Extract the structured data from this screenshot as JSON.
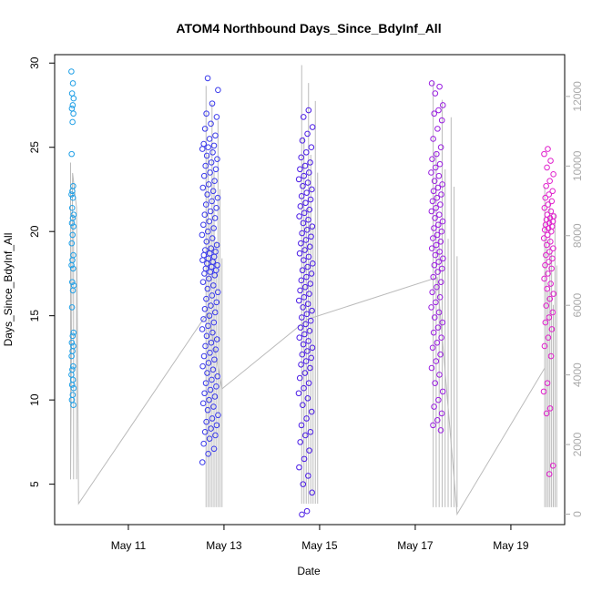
{
  "chart_data": {
    "type": "scatter",
    "title": "ATOM4 Northbound Days_Since_BdyInf_All",
    "xlabel": "Date",
    "ylabel": "Days_Since_BdyInf_All",
    "x_ticks": [
      "May 11",
      "May 13",
      "May 15",
      "May 17",
      "May 19"
    ],
    "x_tick_values": [
      "2024-05-11",
      "2024-05-13",
      "2024-05-15",
      "2024-05-17",
      "2024-05-19"
    ],
    "xlim": [
      "2024-05-09T11:00",
      "2024-05-20T03:00"
    ],
    "y_ticks": [
      5,
      10,
      15,
      20,
      25,
      30
    ],
    "ylim": [
      2.6,
      30.5
    ],
    "y2_ticks": [
      0,
      2000,
      4000,
      6000,
      8000,
      10000,
      12000
    ],
    "y2lim": [
      -300,
      13200
    ],
    "colors": {
      "axis": "#000000",
      "secondary_axis": "#aaaaaa",
      "cumulative_line": "#bbbbbb",
      "series": [
        "#1f9fe6",
        "#3a3aeb",
        "#4b1de6",
        "#9a1fe0",
        "#e01fcc"
      ]
    },
    "series": [
      {
        "x": "2024-05-09T20:00",
        "spread_hours": 1.2,
        "values": [
          29.5,
          28.8,
          28.2,
          27.9,
          27.5,
          27.3,
          27.0,
          26.5,
          24.6,
          22.7,
          22.4,
          22.2,
          22.0,
          21.4,
          21.0,
          20.8,
          20.5,
          20.3,
          19.8,
          19.3,
          18.6,
          18.3,
          18.0,
          17.8,
          17.0,
          16.8,
          16.5,
          15.5,
          14.0,
          13.8,
          13.4,
          13.2,
          12.9,
          12.6,
          12.0,
          11.8,
          11.5,
          11.2,
          10.9,
          10.7,
          10.3,
          10.0,
          9.7
        ]
      },
      {
        "x": "2024-05-12T17:00",
        "spread_hours": 8,
        "values": [
          29.1,
          28.4,
          27.6,
          27.0,
          26.8,
          26.4,
          26.1,
          25.7,
          25.5,
          25.2,
          25.1,
          25.0,
          24.9,
          24.7,
          24.5,
          24.3,
          24.1,
          23.9,
          23.7,
          23.5,
          23.3,
          23.0,
          22.8,
          22.6,
          22.4,
          22.2,
          22.0,
          21.8,
          21.6,
          21.4,
          21.2,
          21.0,
          20.8,
          20.6,
          20.4,
          20.2,
          20.0,
          19.8,
          19.6,
          19.4,
          19.2,
          19.0,
          18.9,
          18.8,
          18.7,
          18.6,
          18.5,
          18.4,
          18.3,
          18.2,
          18.1,
          18.0,
          17.9,
          17.8,
          17.7,
          17.6,
          17.5,
          17.4,
          17.2,
          17.0,
          16.8,
          16.6,
          16.4,
          16.2,
          16.0,
          15.8,
          15.6,
          15.4,
          15.2,
          15.0,
          14.8,
          14.6,
          14.4,
          14.2,
          14.0,
          13.8,
          13.6,
          13.4,
          13.2,
          13.0,
          12.8,
          12.6,
          12.4,
          12.2,
          12.0,
          11.8,
          11.6,
          11.4,
          11.2,
          11.0,
          10.8,
          10.6,
          10.4,
          10.2,
          10.0,
          9.8,
          9.6,
          9.4,
          9.1,
          8.9,
          8.7,
          8.5,
          8.3,
          8.1,
          7.9,
          7.7,
          7.4,
          7.1,
          6.8,
          6.3
        ]
      },
      {
        "x": "2024-05-14T17:00",
        "spread_hours": 7,
        "values": [
          27.2,
          26.8,
          26.2,
          25.8,
          25.4,
          25.0,
          24.7,
          24.4,
          24.1,
          23.9,
          23.7,
          23.5,
          23.3,
          23.1,
          22.9,
          22.7,
          22.5,
          22.3,
          22.1,
          21.9,
          21.7,
          21.5,
          21.3,
          21.1,
          20.9,
          20.7,
          20.5,
          20.3,
          20.1,
          19.9,
          19.7,
          19.5,
          19.3,
          19.1,
          18.9,
          18.7,
          18.5,
          18.3,
          18.1,
          17.9,
          17.7,
          17.5,
          17.3,
          17.1,
          16.9,
          16.7,
          16.5,
          16.3,
          16.1,
          15.9,
          15.7,
          15.5,
          15.3,
          15.1,
          14.9,
          14.7,
          14.5,
          14.3,
          14.1,
          13.9,
          13.7,
          13.5,
          13.3,
          13.1,
          12.9,
          12.7,
          12.5,
          12.3,
          12.1,
          11.9,
          11.6,
          11.3,
          11.0,
          10.7,
          10.4,
          10.1,
          9.7,
          9.3,
          8.9,
          8.5,
          8.1,
          7.9,
          7.5,
          7.0,
          6.5,
          6.0,
          5.5,
          5.0,
          4.5,
          3.4,
          3.2
        ]
      },
      {
        "x": "2024-05-17T11:00",
        "spread_hours": 6,
        "values": [
          28.8,
          28.6,
          28.2,
          27.5,
          27.2,
          27.0,
          26.6,
          26.1,
          25.5,
          25.0,
          24.6,
          24.3,
          24.0,
          23.8,
          23.5,
          23.3,
          23.0,
          22.8,
          22.6,
          22.4,
          22.2,
          22.0,
          21.8,
          21.6,
          21.4,
          21.2,
          21.0,
          20.8,
          20.6,
          20.4,
          20.2,
          20.0,
          19.8,
          19.6,
          19.4,
          19.2,
          19.0,
          18.8,
          18.6,
          18.4,
          18.2,
          18.0,
          17.8,
          17.6,
          17.3,
          17.0,
          16.7,
          16.4,
          16.1,
          15.8,
          15.5,
          15.2,
          14.9,
          14.6,
          14.3,
          14.0,
          13.7,
          13.4,
          13.1,
          12.7,
          12.3,
          11.9,
          11.5,
          11.0,
          10.5,
          10.0,
          9.6,
          9.2,
          8.8,
          8.5,
          8.2
        ]
      },
      {
        "x": "2024-05-19T19:00",
        "spread_hours": 5,
        "values": [
          24.9,
          24.6,
          24.2,
          23.8,
          23.4,
          23.0,
          22.7,
          22.4,
          22.2,
          22.0,
          21.8,
          21.6,
          21.4,
          21.2,
          21.0,
          20.9,
          20.8,
          20.7,
          20.6,
          20.5,
          20.4,
          20.3,
          20.2,
          20.1,
          20.0,
          19.8,
          19.6,
          19.4,
          19.2,
          19.0,
          18.8,
          18.6,
          18.4,
          18.2,
          18.0,
          17.8,
          17.5,
          17.2,
          16.9,
          16.6,
          16.3,
          16.0,
          15.6,
          15.2,
          14.9,
          14.6,
          14.2,
          13.7,
          13.2,
          12.6,
          11.0,
          10.5,
          9.5,
          9.2,
          6.1,
          5.6
        ]
      }
    ],
    "cumulative_line": {
      "axis": "y2",
      "points": [
        [
          "2024-05-09T19:00",
          1000
        ],
        [
          "2024-05-09T20:00",
          9800
        ],
        [
          "2024-05-09T22:00",
          8800
        ],
        [
          "2024-05-09T23:00",
          300
        ],
        [
          "2024-05-12T16:00",
          5800
        ],
        [
          "2024-05-12T23:00",
          3600
        ],
        [
          "2024-05-14T18:00",
          5600
        ],
        [
          "2024-05-17T11:00",
          6800
        ],
        [
          "2024-05-17T21:00",
          0
        ],
        [
          "2024-05-19T17:00",
          4200
        ]
      ],
      "spikes": [
        {
          "x": [
            "2024-05-09T19:00",
            "2024-05-09T22:00"
          ],
          "top": 10100,
          "bottom": 1000,
          "count": 3
        },
        {
          "x": [
            "2024-05-12T15:00",
            "2024-05-12T23:00"
          ],
          "top": 12300,
          "bottom": 200,
          "count": 9
        },
        {
          "x": [
            "2024-05-14T15:00",
            "2024-05-14T23:00"
          ],
          "top": 12900,
          "bottom": 300,
          "count": 8
        },
        {
          "x": [
            "2024-05-17T09:00",
            "2024-05-17T21:00"
          ],
          "top": 12400,
          "bottom": 200,
          "count": 9
        },
        {
          "x": [
            "2024-05-19T17:00",
            "2024-05-19T23:00"
          ],
          "top": 9400,
          "bottom": 200,
          "count": 8
        }
      ]
    }
  }
}
